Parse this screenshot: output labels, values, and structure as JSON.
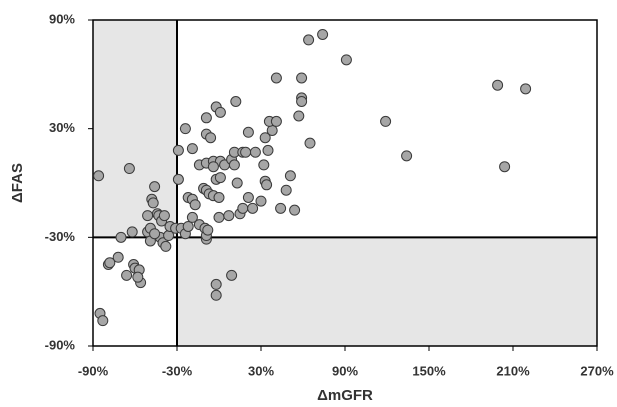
{
  "chart_data": {
    "type": "scatter",
    "xlabel": "ΔmGFR",
    "ylabel": "ΔFAS",
    "x": [
      -86,
      -64,
      -85,
      -83,
      -79,
      -78,
      -72,
      -70,
      -66,
      -62,
      -61,
      -60,
      -57,
      -56,
      -58,
      -51,
      -51,
      -49,
      -48,
      -47,
      -44,
      -43,
      -42,
      -40,
      -38,
      -36,
      -41,
      -39,
      -49,
      -46,
      -46,
      -35,
      -31,
      -27,
      -24,
      -22,
      -19,
      -14,
      -10,
      -9,
      -9,
      -8,
      -29,
      -29,
      -22,
      -19,
      -17,
      -24,
      -19,
      -9,
      -2,
      1,
      12,
      -9,
      -6,
      -14,
      -9,
      -4,
      1,
      4,
      9,
      11,
      -4,
      -2,
      1,
      -11,
      -9,
      -7,
      -4,
      13,
      0,
      0,
      7,
      15,
      17,
      21,
      24,
      30,
      33,
      34,
      51,
      48,
      44,
      54,
      11,
      17,
      26,
      19,
      35,
      32,
      21,
      33,
      38,
      36,
      41,
      57,
      65,
      59,
      59,
      41,
      59,
      64,
      74,
      91,
      119,
      134,
      199,
      219,
      204,
      9,
      -2,
      -2
    ],
    "values": [
      4,
      8,
      -72,
      -76,
      -45,
      -44,
      -41,
      -30,
      -51,
      -27,
      -45,
      -47,
      -48,
      -55,
      -52,
      -18,
      -27,
      -32,
      -9,
      -11,
      -17,
      -18,
      -30,
      -33,
      -35,
      -29,
      -21,
      -18,
      -25,
      -28,
      -2,
      -24,
      -25,
      -25,
      -28,
      -24,
      -19,
      -23,
      -25,
      -31,
      -29,
      -26,
      2,
      18,
      -8,
      -9,
      -12,
      30,
      19,
      36,
      42,
      39,
      45,
      27,
      25,
      10,
      11,
      12,
      12,
      10,
      13,
      10,
      9,
      2,
      3,
      -3,
      -4,
      -6,
      -7,
      0,
      -8,
      -19,
      -18,
      -17,
      -14,
      -8,
      -14,
      -10,
      1,
      -1,
      4,
      -4,
      -14,
      -15,
      17,
      17,
      17,
      17,
      18,
      10,
      28,
      25,
      29,
      34,
      34,
      37,
      22,
      47,
      45,
      58,
      58,
      79,
      82,
      68,
      34,
      15,
      54,
      52,
      9,
      -51,
      -56,
      -62
    ],
    "color": "#a6a6a6",
    "xlim": [
      -90,
      270
    ],
    "xticks": [
      {
        "value": -90,
        "label": "-90%"
      },
      {
        "value": -30,
        "label": "-30%"
      },
      {
        "value": 30,
        "label": "30%"
      },
      {
        "value": 90,
        "label": "90%"
      },
      {
        "value": 150,
        "label": "150%"
      },
      {
        "value": 210,
        "label": "210%"
      },
      {
        "value": 270,
        "label": "270%"
      }
    ],
    "ylim": [
      -90,
      90
    ],
    "yticks": [
      {
        "value": -90,
        "label": "-90%"
      },
      {
        "value": -30,
        "label": "-30%"
      },
      {
        "value": 30,
        "label": "30%"
      },
      {
        "value": 90,
        "label": "90%"
      }
    ],
    "reference_lines": {
      "x": -30,
      "y": -30
    },
    "shade_color": "#e6e6e6"
  }
}
